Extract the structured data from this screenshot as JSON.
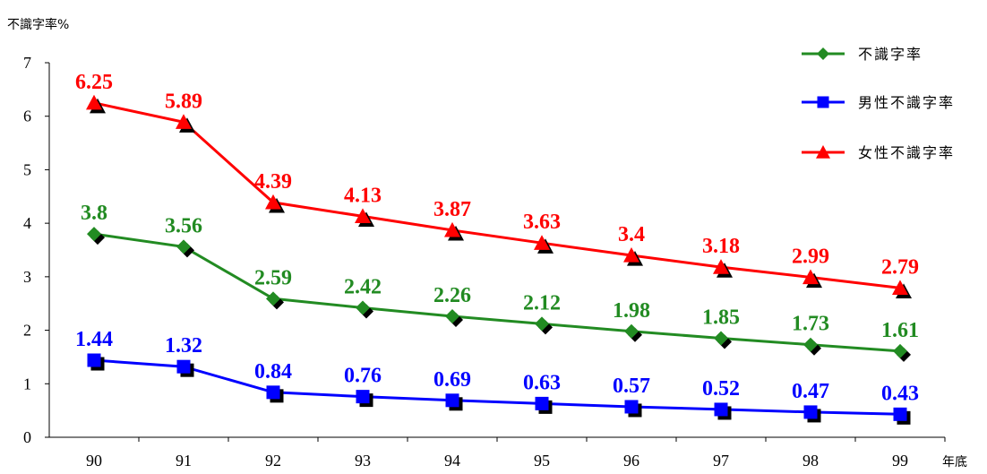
{
  "chart_data": {
    "type": "line",
    "ylabel": "不識字率%",
    "xlabel": "年底",
    "categories": [
      "90",
      "91",
      "92",
      "93",
      "94",
      "95",
      "96",
      "97",
      "98",
      "99"
    ],
    "ylim": [
      0,
      7
    ],
    "yticks": [
      "0",
      "1",
      "2",
      "3",
      "4",
      "5",
      "6",
      "7"
    ],
    "grid": false,
    "legend_position": "top-right",
    "series": [
      {
        "name": "不識字率",
        "color": "#228b22",
        "marker": "diamond",
        "values": [
          3.8,
          3.56,
          2.59,
          2.42,
          2.26,
          2.12,
          1.98,
          1.85,
          1.73,
          1.61
        ],
        "labels": [
          "3.8",
          "3.56",
          "2.59",
          "2.42",
          "2.26",
          "2.12",
          "1.98",
          "1.85",
          "1.73",
          "1.61"
        ]
      },
      {
        "name": "男性不識字率",
        "color": "#0000ff",
        "marker": "square",
        "values": [
          1.44,
          1.32,
          0.84,
          0.76,
          0.69,
          0.63,
          0.57,
          0.52,
          0.47,
          0.43
        ],
        "labels": [
          "1.44",
          "1.32",
          "0.84",
          "0.76",
          "0.69",
          "0.63",
          "0.57",
          "0.52",
          "0.47",
          "0.43"
        ]
      },
      {
        "name": "女性不識字率",
        "color": "#ff0000",
        "marker": "triangle",
        "values": [
          6.25,
          5.89,
          4.39,
          4.13,
          3.87,
          3.63,
          3.4,
          3.18,
          2.99,
          2.79
        ],
        "labels": [
          "6.25",
          "5.89",
          "4.39",
          "4.13",
          "3.87",
          "3.63",
          "3.4",
          "3.18",
          "2.99",
          "2.79"
        ]
      }
    ]
  }
}
